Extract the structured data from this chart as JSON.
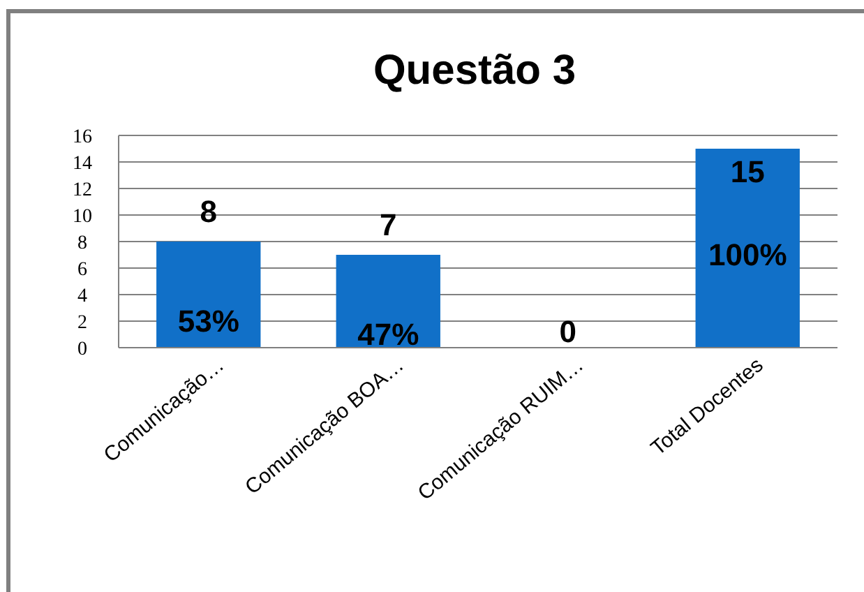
{
  "chart_data": {
    "type": "bar",
    "title": "Questão  3",
    "categories": [
      "Comunicação…",
      "Comunicação BOA…",
      "Comunicação RUIM…",
      "Total Docentes"
    ],
    "values": [
      8,
      7,
      0,
      15
    ],
    "color": "#1170c8",
    "ylim": [
      0,
      16
    ],
    "yticks": [
      0,
      2,
      4,
      6,
      8,
      10,
      12,
      14,
      16
    ],
    "grid": "y",
    "data_labels": true,
    "annotations": [
      {
        "text": "53%",
        "x": "Comunicação…",
        "y": 2
      },
      {
        "text": "47%",
        "x": "Comunicação BOA…",
        "y": 1
      },
      {
        "text": "100%",
        "x": "Total Docentes",
        "y": 7
      }
    ]
  }
}
